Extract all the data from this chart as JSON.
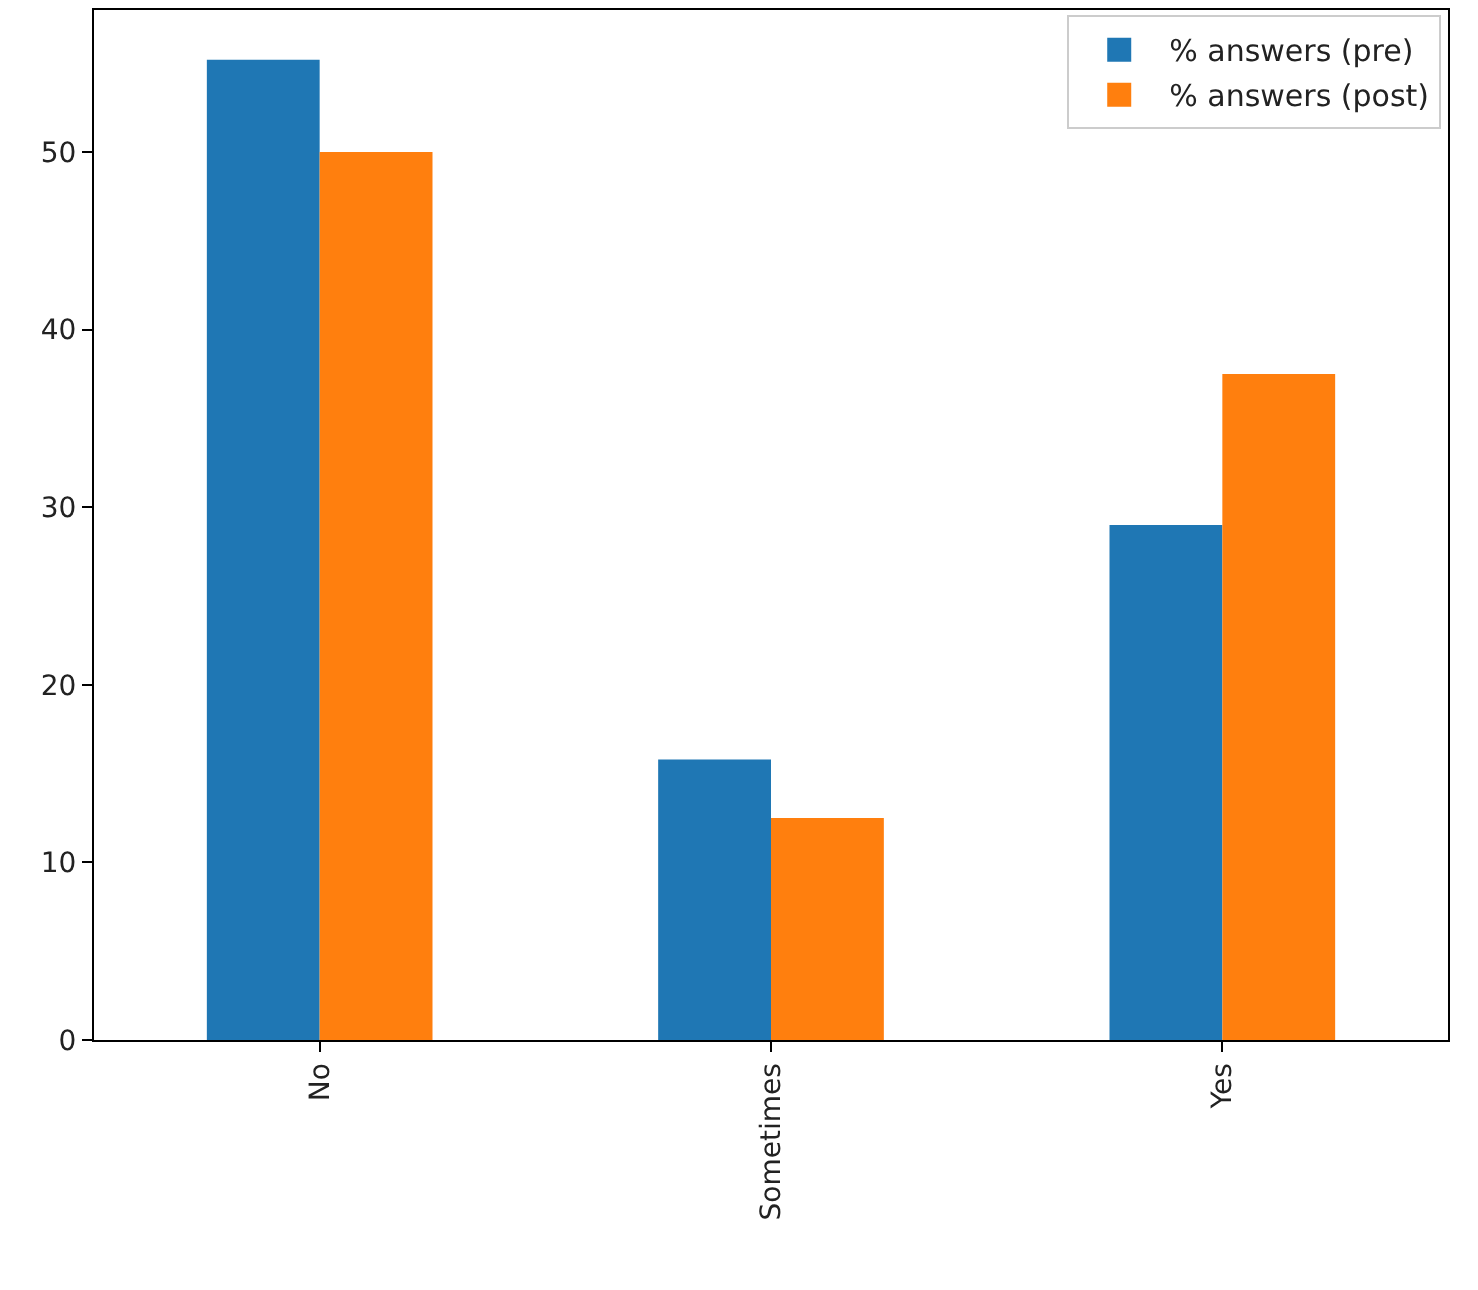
{
  "chart_data": {
    "type": "bar",
    "categories": [
      "No",
      "Sometimes",
      "Yes"
    ],
    "series": [
      {
        "name": "% answers (pre)",
        "color": "#1f77b4",
        "values": [
          55.2,
          15.8,
          29.0
        ]
      },
      {
        "name": "% answers (post)",
        "color": "#ff7f0e",
        "values": [
          50.0,
          12.5,
          37.5
        ]
      }
    ],
    "ylim": [
      0,
      58
    ],
    "yticks": [
      0,
      10,
      20,
      30,
      40,
      50
    ],
    "legend": "top right"
  }
}
